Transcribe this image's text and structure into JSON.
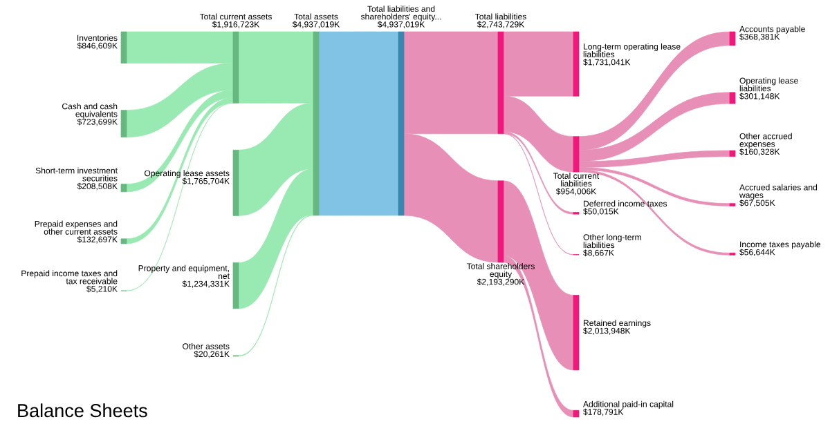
{
  "chart_data": {
    "type": "other",
    "title": "Balance Sheets",
    "categories": [
      "Inventories",
      "Cash and cash\nequivalents",
      "Short-term investment\nsecurities",
      "Prepaid expenses and\nother current assets",
      "Prepaid income taxes and\ntax receivable",
      "Total current assets",
      "Operating lease assets",
      "Property and equipment,\nnet",
      "Other assets",
      "Total assets",
      "Total liabilities and\nshareholders' equity...",
      "Total liabilities",
      "Total shareholders\nequity",
      "Long-term operating lease\nliabilities",
      "Total current\nliabilities",
      "Deferred income taxes",
      "Other long-term\nliabilities",
      "Retained earnings",
      "Additional paid-in capital",
      "Accounts payable",
      "Operating lease\nliabilities",
      "Other accrued\nexpenses",
      "Accrued salaries and\nwages",
      "Income taxes payable"
    ],
    "values": [
      846609,
      723699,
      208508,
      132697,
      5210,
      1916723,
      1765704,
      1234331,
      20261,
      4937019,
      4937019,
      2743729,
      2193290,
      1731041,
      954006,
      50015,
      8667,
      2013948,
      178791,
      368381,
      301148,
      160328,
      67505,
      56644
    ],
    "value_labels": [
      "$846,609K",
      "$723,699K",
      "$208,508K",
      "$132,697K",
      "$5,210K",
      "$1,916,723K",
      "$1,765,704K",
      "$1,234,331K",
      "$20,261K",
      "$4,937,019K",
      "$4,937,019K",
      "$2,743,729K",
      "$2,193,290K",
      "$1,731,041K",
      "$954,006K",
      "$50,015K",
      "$8,667K",
      "$2,013,948K",
      "$178,791K",
      "$368,381K",
      "$301,148K",
      "$160,328K",
      "$67,505K",
      "$56,644K"
    ],
    "colors": [
      "#67b780",
      "#67b780",
      "#67b780",
      "#67b780",
      "#67b780",
      "#67b780",
      "#67b780",
      "#67b780",
      "#67b780",
      "#67b780",
      "#3a87ad",
      "#f0187a",
      "#f0187a",
      "#f0187a",
      "#f0187a",
      "#f0187a",
      "#f0187a",
      "#f0187a",
      "#f0187a",
      "#f0187a",
      "#f0187a",
      "#f0187a",
      "#f0187a",
      "#f0187a"
    ]
  }
}
